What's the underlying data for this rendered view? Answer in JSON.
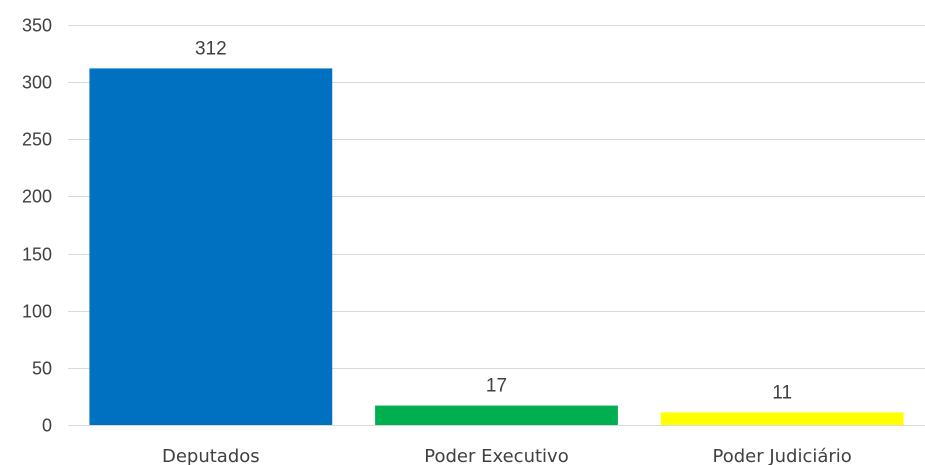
{
  "chart_data": {
    "type": "bar",
    "title": "",
    "xlabel": "",
    "ylabel": "",
    "categories": [
      "Deputados",
      "Poder Executivo",
      "Poder Judiciário"
    ],
    "values": [
      312,
      17,
      11
    ],
    "data_labels": [
      "312",
      "17",
      "11"
    ],
    "colors": [
      "#0070c0",
      "#00b050",
      "#ffff00"
    ],
    "ylim": [
      0,
      350
    ],
    "yticks": [
      0,
      50,
      100,
      150,
      200,
      250,
      300,
      350
    ],
    "grid": true,
    "legend": "none"
  }
}
